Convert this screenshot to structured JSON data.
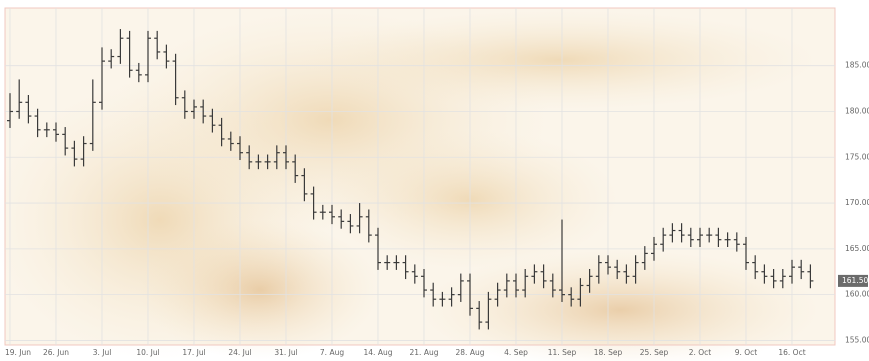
{
  "chart_data": {
    "type": "ohlc",
    "categories": [
      "19. Jun",
      null,
      null,
      null,
      null,
      "26. Jun",
      null,
      null,
      null,
      null,
      "3. Jul",
      null,
      null,
      null,
      null,
      "10. Jul",
      null,
      null,
      null,
      null,
      "17. Jul",
      null,
      null,
      null,
      null,
      "24. Jul",
      null,
      null,
      null,
      null,
      "31. Jul",
      null,
      null,
      null,
      null,
      "7. Aug",
      null,
      null,
      null,
      null,
      "14. Aug",
      null,
      null,
      null,
      null,
      "21. Aug",
      null,
      null,
      null,
      null,
      "28. Aug",
      null,
      null,
      null,
      null,
      "4. Sep",
      null,
      null,
      null,
      null,
      "11. Sep",
      null,
      null,
      null,
      null,
      "18. Sep",
      null,
      null,
      null,
      null,
      "25. Sep",
      null,
      null,
      null,
      null,
      "2. Oct",
      null,
      null,
      null,
      null,
      "9. Oct",
      null,
      null,
      null,
      null,
      "16. Oct",
      null,
      null
    ],
    "open": [
      179,
      180,
      181,
      179.5,
      178,
      178,
      177.5,
      176,
      174.8,
      176.5,
      181,
      185.5,
      186,
      188,
      184.5,
      184,
      188,
      186.5,
      185.5,
      181.5,
      180,
      180.5,
      179.5,
      178.5,
      177,
      176.5,
      175.5,
      174.5,
      174.5,
      174.5,
      175.5,
      174.5,
      173,
      171,
      169,
      169,
      168.5,
      168,
      167.5,
      168.5,
      166.5,
      163.5,
      163.5,
      163.5,
      162.5,
      162,
      160.5,
      159.5,
      159.5,
      160,
      161.5,
      158.5,
      157,
      159.5,
      160.5,
      161.5,
      160.5,
      162,
      162.5,
      161.5,
      160.5,
      160,
      159.5,
      161,
      162,
      163.5,
      163,
      162.5,
      162,
      163.5,
      164.5,
      165.5,
      166.5,
      167,
      166.5,
      166,
      166.5,
      166.5,
      166,
      166,
      165.5,
      163.5,
      162.5,
      162,
      161.5,
      162,
      163,
      162.5
    ],
    "high": [
      182,
      183.5,
      181.8,
      180.3,
      178.8,
      178.8,
      178.3,
      176.8,
      177.3,
      183.5,
      187,
      186.8,
      189,
      188.8,
      185.3,
      188.8,
      188.8,
      187.3,
      186.3,
      182.3,
      181.3,
      181.3,
      180.3,
      179.3,
      177.8,
      177.3,
      176.3,
      175.3,
      175.3,
      176.3,
      176.3,
      175.3,
      173.8,
      171.8,
      169.8,
      169.8,
      169.3,
      168.8,
      170,
      169.3,
      167.3,
      164.3,
      164.3,
      164.3,
      163.3,
      162.8,
      161.3,
      160.3,
      160.8,
      162.3,
      162.3,
      159.3,
      160.3,
      161.3,
      162.3,
      162.3,
      162.8,
      163.3,
      163.3,
      162.3,
      168.2,
      160.8,
      161.8,
      162.8,
      164.3,
      164.3,
      163.8,
      163.3,
      164.3,
      165.3,
      166.3,
      167.3,
      167.8,
      167.8,
      167.3,
      167.3,
      167.3,
      167.3,
      166.8,
      166.8,
      166.3,
      164.3,
      163.3,
      162.8,
      162.8,
      163.8,
      163.8,
      163.3
    ],
    "low": [
      178.2,
      179.2,
      178.7,
      177.2,
      177.2,
      176.7,
      175.2,
      174,
      174,
      175.7,
      180.2,
      184.7,
      185.2,
      183.7,
      183.2,
      183.2,
      185.7,
      184.7,
      180.7,
      179.2,
      179.2,
      178.7,
      177.7,
      176.2,
      175.7,
      174.7,
      173.7,
      173.7,
      173.7,
      173.7,
      173.7,
      172.2,
      170.2,
      168.2,
      168.2,
      167.7,
      167.2,
      166.7,
      166.7,
      165.7,
      162.7,
      162.7,
      162.7,
      161.7,
      161.2,
      159.7,
      158.7,
      158.7,
      158.7,
      159.2,
      157.7,
      156.2,
      156.2,
      158.7,
      159.7,
      159.7,
      159.7,
      161.2,
      160.7,
      159.7,
      159.2,
      158.7,
      158.7,
      160.2,
      161.2,
      162.2,
      161.7,
      161.2,
      161.2,
      162.7,
      163.7,
      164.7,
      165.7,
      165.7,
      165.2,
      165.2,
      165.7,
      165.2,
      165.2,
      164.7,
      162.7,
      161.7,
      161.2,
      160.7,
      160.7,
      161.2,
      161.7,
      160.7
    ],
    "close": [
      180,
      181,
      179.5,
      178,
      178,
      177.5,
      176,
      174.8,
      176.5,
      181,
      185.5,
      186,
      188,
      184.5,
      184,
      188,
      186.5,
      185.5,
      181.5,
      180,
      180.5,
      179.5,
      178.5,
      177,
      176.5,
      175.5,
      174.5,
      174.5,
      174.5,
      175.5,
      174.5,
      173,
      171,
      169,
      169,
      168.5,
      168,
      167.5,
      168.5,
      166.5,
      163.5,
      163.5,
      163.5,
      162.5,
      162,
      160.5,
      159.5,
      159.5,
      160,
      161.5,
      158.5,
      157,
      159.5,
      160.5,
      161.5,
      160.5,
      162,
      162.5,
      161.5,
      160.5,
      160,
      159.5,
      161,
      162,
      163.5,
      163,
      162.5,
      162,
      163.5,
      164.5,
      165.5,
      166.5,
      167,
      166.5,
      166,
      166.5,
      166.5,
      166,
      166,
      165.5,
      163.5,
      162.5,
      162,
      161.5,
      162,
      163,
      162.5,
      161.5
    ],
    "last_price": {
      "value": 161.5,
      "label": "161.50"
    },
    "color": "#3a3a3a",
    "ylim": [
      154.5,
      191.3
    ],
    "yticks": [
      {
        "value": 155,
        "label": "155.00"
      },
      {
        "value": 160,
        "label": "160.00"
      },
      {
        "value": 165,
        "label": "165.00"
      },
      {
        "value": 170,
        "label": "170.00"
      },
      {
        "value": 175,
        "label": "175.00"
      },
      {
        "value": 180,
        "label": "180.00"
      },
      {
        "value": 185,
        "label": "185.00"
      }
    ],
    "grid": true
  }
}
